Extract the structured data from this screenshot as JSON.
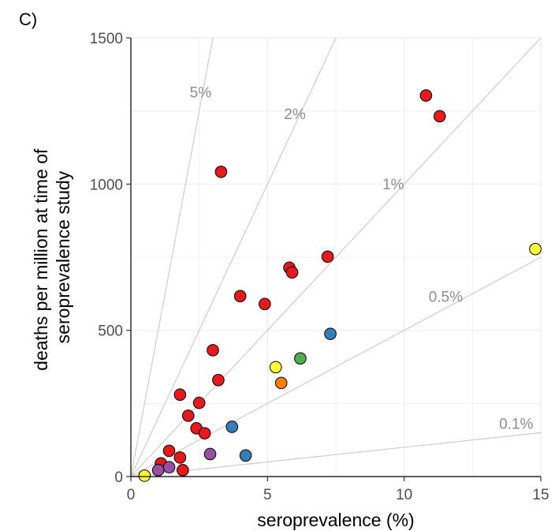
{
  "panel_label": "C)",
  "chart_data": {
    "type": "scatter",
    "title": "",
    "xlabel": "seroprevalence (%)",
    "ylabel_lines": [
      "deaths per million at time of",
      "seroprevalence study"
    ],
    "xlim": [
      0,
      15
    ],
    "ylim": [
      0,
      1500
    ],
    "xticks": [
      0,
      5,
      10,
      15
    ],
    "yticks": [
      0,
      500,
      1000,
      1500
    ],
    "grid": true,
    "reference_lines": [
      {
        "label": "5%",
        "rate_percent": 5
      },
      {
        "label": "2%",
        "rate_percent": 2
      },
      {
        "label": "1%",
        "rate_percent": 1
      },
      {
        "label": "0.5%",
        "rate_percent": 0.5
      },
      {
        "label": "0.1%",
        "rate_percent": 0.1
      }
    ],
    "colors": {
      "red": "#e41a1c",
      "blue": "#377eb8",
      "green": "#4daf4a",
      "purple": "#984ea3",
      "orange": "#ff7f00",
      "yellow": "#ffff33"
    },
    "points": [
      {
        "x": 10.8,
        "y": 1303,
        "color": "red"
      },
      {
        "x": 11.3,
        "y": 1232,
        "color": "red"
      },
      {
        "x": 3.3,
        "y": 1042,
        "color": "red"
      },
      {
        "x": 7.2,
        "y": 752,
        "color": "red"
      },
      {
        "x": 5.8,
        "y": 714,
        "color": "red"
      },
      {
        "x": 5.9,
        "y": 698,
        "color": "red"
      },
      {
        "x": 4.0,
        "y": 617,
        "color": "red"
      },
      {
        "x": 4.9,
        "y": 590,
        "color": "red"
      },
      {
        "x": 3.0,
        "y": 432,
        "color": "red"
      },
      {
        "x": 3.2,
        "y": 330,
        "color": "red"
      },
      {
        "x": 1.8,
        "y": 280,
        "color": "red"
      },
      {
        "x": 2.5,
        "y": 252,
        "color": "red"
      },
      {
        "x": 2.1,
        "y": 208,
        "color": "red"
      },
      {
        "x": 2.4,
        "y": 165,
        "color": "red"
      },
      {
        "x": 2.7,
        "y": 148,
        "color": "red"
      },
      {
        "x": 1.4,
        "y": 88,
        "color": "red"
      },
      {
        "x": 1.8,
        "y": 65,
        "color": "red"
      },
      {
        "x": 1.1,
        "y": 45,
        "color": "red"
      },
      {
        "x": 1.9,
        "y": 22,
        "color": "red"
      },
      {
        "x": 14.8,
        "y": 778,
        "color": "yellow"
      },
      {
        "x": 7.3,
        "y": 488,
        "color": "blue"
      },
      {
        "x": 6.2,
        "y": 404,
        "color": "green"
      },
      {
        "x": 5.3,
        "y": 374,
        "color": "yellow"
      },
      {
        "x": 5.5,
        "y": 320,
        "color": "orange"
      },
      {
        "x": 3.7,
        "y": 170,
        "color": "blue"
      },
      {
        "x": 4.2,
        "y": 72,
        "color": "blue"
      },
      {
        "x": 2.9,
        "y": 77,
        "color": "purple"
      },
      {
        "x": 1.4,
        "y": 32,
        "color": "purple"
      },
      {
        "x": 1.0,
        "y": 22,
        "color": "purple"
      },
      {
        "x": 0.5,
        "y": 3,
        "color": "yellow"
      }
    ]
  }
}
